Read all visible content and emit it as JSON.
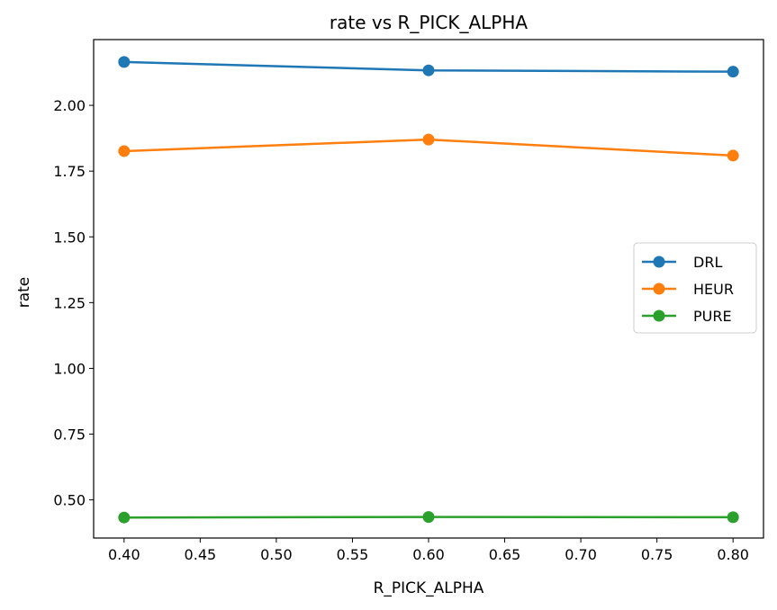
{
  "chart_data": {
    "type": "line",
    "title": "rate vs R_PICK_ALPHA",
    "xlabel": "R_PICK_ALPHA",
    "ylabel": "rate",
    "xlim": [
      0.38,
      0.82
    ],
    "ylim": [
      0.355,
      2.25
    ],
    "xticks": [
      "0.40",
      "0.45",
      "0.50",
      "0.55",
      "0.60",
      "0.65",
      "0.70",
      "0.75",
      "0.80"
    ],
    "yticks": [
      "0.50",
      "0.75",
      "1.00",
      "1.25",
      "1.50",
      "1.75",
      "2.00"
    ],
    "x": [
      0.4,
      0.6,
      0.8
    ],
    "series": [
      {
        "name": "DRL",
        "color": "#1f77b4",
        "values": [
          2.165,
          2.133,
          2.128
        ]
      },
      {
        "name": "HEUR",
        "color": "#ff7f0e",
        "values": [
          1.826,
          1.87,
          1.809
        ]
      },
      {
        "name": "PURE",
        "color": "#2ca02c",
        "values": [
          0.433,
          0.435,
          0.434
        ]
      }
    ],
    "legend_position": "center-right",
    "grid": false,
    "markers": "circle"
  }
}
